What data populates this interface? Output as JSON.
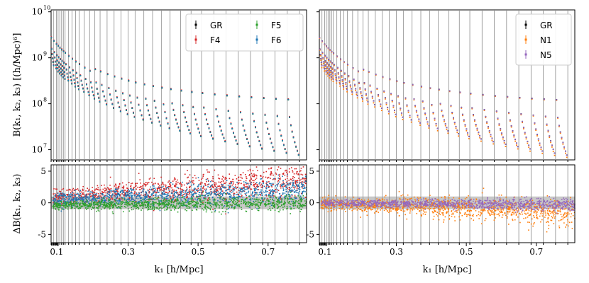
{
  "chart_data": [
    {
      "type": "scatter",
      "panel": "top-left",
      "ylabel": "B(k₁, k₂, k₃) [(h/Mpc)⁶]",
      "yscale": "log",
      "ylim": [
        6000000,
        11000000000
      ],
      "yticks": [
        {
          "value": 10000000,
          "base": "10",
          "exp": "7"
        },
        {
          "value": 100000000,
          "base": "10",
          "exp": "8"
        },
        {
          "value": 1000000000,
          "base": "10",
          "exp": "9"
        },
        {
          "value": 10000000000,
          "base": "10",
          "exp": "10"
        }
      ],
      "xlim": [
        0.08,
        0.81
      ],
      "legend_position": "top-right",
      "series": [
        {
          "name": "GR",
          "color": "#000000",
          "offset": 1.0
        },
        {
          "name": "F4",
          "color": "#d62728",
          "offset": 1.04
        },
        {
          "name": "F5",
          "color": "#2ca02c",
          "offset": 1.0
        },
        {
          "name": "F6",
          "color": "#1f77b4",
          "offset": 1.01
        }
      ],
      "legend_columns": [
        [
          "GR",
          "F4"
        ],
        [
          "F5",
          "F6"
        ]
      ]
    },
    {
      "type": "scatter",
      "panel": "top-right",
      "yscale": "log",
      "ylim": [
        6000000,
        11000000000
      ],
      "xlim": [
        0.08,
        0.81
      ],
      "legend_position": "top-right",
      "series": [
        {
          "name": "GR",
          "color": "#000000",
          "offset": 1.0
        },
        {
          "name": "N1",
          "color": "#ff7f0e",
          "offset": 0.97
        },
        {
          "name": "N5",
          "color": "#9467bd",
          "offset": 0.995
        }
      ]
    },
    {
      "type": "scatter",
      "panel": "bottom-left",
      "ylabel": "ΔB(k₁, k₂, k₃)",
      "xlabel": "k₁ [h/Mpc]",
      "xlim": [
        0.08,
        0.81
      ],
      "ylim": [
        -6.3,
        6.0
      ],
      "yticks": [
        -5,
        0,
        5
      ],
      "xticks": [
        0.1,
        0.3,
        0.5,
        0.7
      ],
      "shaded_band": [
        -1,
        1
      ],
      "series": [
        {
          "name": "F4",
          "color": "#d62728",
          "mean_start": 0.8,
          "mean_end": 3.6,
          "spread": 1.1
        },
        {
          "name": "F6",
          "color": "#1f77b4",
          "mean_start": 0.5,
          "mean_end": 1.9,
          "spread": 0.9
        },
        {
          "name": "F5",
          "color": "#2ca02c",
          "mean_start": -0.4,
          "mean_end": 0.0,
          "spread": 0.55
        }
      ]
    },
    {
      "type": "scatter",
      "panel": "bottom-right",
      "xlabel": "k₁ [h/Mpc]",
      "xlim": [
        0.08,
        0.81
      ],
      "ylim": [
        -6.3,
        6.0
      ],
      "yticks": [
        -5,
        0,
        5
      ],
      "xticks": [
        0.1,
        0.3,
        0.5,
        0.7
      ],
      "shaded_band": [
        -1,
        1
      ],
      "series": [
        {
          "name": "N1",
          "color": "#ff7f0e",
          "mean_start": -0.1,
          "mean_end": -1.6,
          "spread": 0.9
        },
        {
          "name": "N5",
          "color": "#9467bd",
          "mean_start": -0.05,
          "mean_end": -0.3,
          "spread": 0.4
        }
      ]
    }
  ],
  "axes": {
    "xtick_labels": [
      "0.1",
      "0.3",
      "0.5",
      "0.7"
    ],
    "xlabel": "k₁ [h/Mpc]",
    "bin_edges_k1": [
      0.08,
      0.0875,
      0.095,
      0.1,
      0.105,
      0.11,
      0.115,
      0.12,
      0.13,
      0.14,
      0.15,
      0.16,
      0.175,
      0.19,
      0.205,
      0.22,
      0.24,
      0.26,
      0.28,
      0.3,
      0.32,
      0.345,
      0.37,
      0.395,
      0.42,
      0.45,
      0.48,
      0.51,
      0.545,
      0.58,
      0.615,
      0.65,
      0.685,
      0.72,
      0.755,
      0.79
    ]
  }
}
